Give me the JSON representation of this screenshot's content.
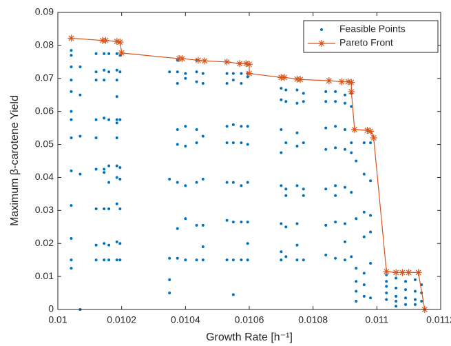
{
  "chart_data": {
    "type": "scatter",
    "xlabel": "Growth Rate [h⁻¹]",
    "ylabel": "Maximum β-carotene Yield",
    "xlim": [
      0.01,
      0.0112
    ],
    "ylim": [
      0,
      0.09
    ],
    "xticks": [
      0.01,
      0.0102,
      0.0104,
      0.0106,
      0.0108,
      0.011,
      0.0112
    ],
    "yticks": [
      0,
      0.01,
      0.02,
      0.03,
      0.04,
      0.05,
      0.06,
      0.07,
      0.08,
      0.09
    ],
    "legend": "upper right",
    "series": [
      {
        "name": "Feasible Points",
        "color": "#0072bd",
        "mode": "markers",
        "x": [
          0.010042,
          0.010042,
          0.010042,
          0.010042,
          0.010042,
          0.010042,
          0.010042,
          0.010042,
          0.010042,
          0.010042,
          0.010042,
          0.010042,
          0.010042,
          0.01007,
          0.01007,
          0.01007,
          0.01007,
          0.01007,
          0.01012,
          0.01012,
          0.01012,
          0.01012,
          0.01012,
          0.01012,
          0.01012,
          0.01012,
          0.01012,
          0.010145,
          0.010145,
          0.010145,
          0.010145,
          0.010145,
          0.010145,
          0.010145,
          0.010145,
          0.010145,
          0.01016,
          0.01016,
          0.01016,
          0.01016,
          0.01016,
          0.01016,
          0.01016,
          0.01016,
          0.010185,
          0.010185,
          0.010185,
          0.010185,
          0.010185,
          0.010185,
          0.010185,
          0.010185,
          0.010185,
          0.010185,
          0.010185,
          0.010185,
          0.010195,
          0.010195,
          0.010195,
          0.010195,
          0.010195,
          0.010195,
          0.010195,
          0.010195,
          0.01035,
          0.01035,
          0.01035,
          0.01035,
          0.01035,
          0.010375,
          0.010375,
          0.010375,
          0.010375,
          0.010375,
          0.010375,
          0.010375,
          0.010375,
          0.0104,
          0.0104,
          0.0104,
          0.0104,
          0.0104,
          0.0104,
          0.0104,
          0.010435,
          0.010435,
          0.010435,
          0.010435,
          0.010435,
          0.010435,
          0.010435,
          0.010435,
          0.010455,
          0.010455,
          0.010455,
          0.010455,
          0.010455,
          0.010455,
          0.010455,
          0.01053,
          0.01053,
          0.01053,
          0.01053,
          0.01053,
          0.01053,
          0.01053,
          0.01053,
          0.01055,
          0.01055,
          0.01055,
          0.01055,
          0.01055,
          0.01055,
          0.01055,
          0.01055,
          0.010575,
          0.010575,
          0.010575,
          0.010575,
          0.010575,
          0.010575,
          0.010575,
          0.010595,
          0.010595,
          0.010595,
          0.010595,
          0.010595,
          0.010595,
          0.010595,
          0.010595,
          0.0107,
          0.0107,
          0.0107,
          0.0107,
          0.0107,
          0.0107,
          0.0107,
          0.0107,
          0.010715,
          0.010715,
          0.010715,
          0.010715,
          0.010715,
          0.010715,
          0.010715,
          0.01075,
          0.01075,
          0.01075,
          0.01075,
          0.01075,
          0.01075,
          0.01075,
          0.01075,
          0.01077,
          0.01077,
          0.01077,
          0.01077,
          0.01077,
          0.01077,
          0.01084,
          0.01084,
          0.01084,
          0.01084,
          0.01084,
          0.01084,
          0.01084,
          0.01087,
          0.01087,
          0.01087,
          0.01087,
          0.01087,
          0.01087,
          0.01087,
          0.01087,
          0.0109,
          0.0109,
          0.0109,
          0.0109,
          0.0109,
          0.0109,
          0.0109,
          0.0109,
          0.01092,
          0.01092,
          0.01092,
          0.01092,
          0.01092,
          0.01092,
          0.010935,
          0.010935,
          0.010935,
          0.010935,
          0.010935,
          0.010935,
          0.01096,
          0.01096,
          0.01096,
          0.01096,
          0.01096,
          0.01096,
          0.01096,
          0.01098,
          0.01098,
          0.01098,
          0.01098,
          0.01098,
          0.01098,
          0.01103,
          0.01103,
          0.01103,
          0.01103,
          0.01103,
          0.01106,
          0.01106,
          0.01106,
          0.01106,
          0.01106,
          0.01109,
          0.01109,
          0.01109,
          0.01109,
          0.01112,
          0.01112,
          0.01112,
          0.01112,
          0.01114,
          0.01114,
          0.01114
        ],
        "y": [
          0.0785,
          0.077,
          0.0735,
          0.0695,
          0.066,
          0.06,
          0.0575,
          0.052,
          0.042,
          0.0315,
          0.0215,
          0.015,
          0.0125,
          0.0735,
          0.065,
          0.0525,
          0.041,
          0,
          0.0775,
          0.072,
          0.0695,
          0.0575,
          0.052,
          0.0425,
          0.0305,
          0.0195,
          0.015,
          0.0775,
          0.0725,
          0.0695,
          0.058,
          0.0425,
          0.0415,
          0.0305,
          0.02,
          0.015,
          0.0775,
          0.072,
          0.0575,
          0.0435,
          0.0385,
          0.0305,
          0.0195,
          0.015,
          0.0775,
          0.0725,
          0.0695,
          0.0645,
          0.0575,
          0.0565,
          0.052,
          0.0435,
          0.04,
          0.032,
          0.0205,
          0.015,
          0.077,
          0.072,
          0.0575,
          0.043,
          0.0395,
          0.0305,
          0.02,
          0.015,
          0.072,
          0.0395,
          0.0155,
          0.009,
          0.005,
          0.0755,
          0.072,
          0.0685,
          0.0545,
          0.05,
          0.0385,
          0.0245,
          0.0155,
          0.0715,
          0.07,
          0.0555,
          0.0495,
          0.0375,
          0.0275,
          0.015,
          0.0755,
          0.072,
          0.069,
          0.0545,
          0.0505,
          0.0385,
          0.0255,
          0.015,
          0.0715,
          0.0685,
          0.0525,
          0.0395,
          0.0255,
          0.019,
          0.015,
          0.075,
          0.0715,
          0.0685,
          0.0555,
          0.0505,
          0.0385,
          0.027,
          0.015,
          0.0715,
          0.0695,
          0.056,
          0.0505,
          0.0385,
          0.0265,
          0.015,
          0.0045,
          0.0715,
          0.0685,
          0.0555,
          0.0505,
          0.0375,
          0.0265,
          0.015,
          0.0715,
          0.0705,
          0.0555,
          0.05,
          0.0385,
          0.0265,
          0.02,
          0.015,
          0.067,
          0.0635,
          0.0545,
          0.0475,
          0.0375,
          0.026,
          0.0175,
          0.015,
          0.0665,
          0.063,
          0.0505,
          0.0365,
          0.0345,
          0.025,
          0.016,
          0.0665,
          0.0625,
          0.0535,
          0.0495,
          0.0375,
          0.026,
          0.0195,
          0.015,
          0.0655,
          0.063,
          0.0505,
          0.0365,
          0.0345,
          0.015,
          0.066,
          0.063,
          0.055,
          0.0485,
          0.0365,
          0.0255,
          0.0165,
          0.066,
          0.063,
          0.0555,
          0.049,
          0.0375,
          0.0345,
          0.0265,
          0.0155,
          0.065,
          0.0625,
          0.0545,
          0.0485,
          0.037,
          0.026,
          0.0205,
          0.015,
          0.0655,
          0.0615,
          0.0505,
          0.0475,
          0.0355,
          0.016,
          0.045,
          0.0275,
          0.0125,
          0.0085,
          0.0055,
          0.0025,
          0.0505,
          0.041,
          0.0295,
          0.022,
          0.011,
          0.0075,
          0.004,
          0.0505,
          0.039,
          0.0285,
          0.0235,
          0.014,
          0.0035,
          0.0105,
          0.0085,
          0.007,
          0.005,
          0.003,
          0.0095,
          0.0065,
          0.004,
          0.0025,
          0.001,
          0.0085,
          0.006,
          0.0035,
          0.0015,
          0.009,
          0.0055,
          0.003,
          0.0015,
          0.0075,
          0.005,
          0.0025
        ]
      },
      {
        "name": "Pareto Front",
        "color": "#d95319",
        "mode": "lines+markers",
        "x": [
          0.010042,
          0.01014,
          0.01015,
          0.010185,
          0.010195,
          0.0102,
          0.01038,
          0.01039,
          0.01044,
          0.01046,
          0.01053,
          0.01057,
          0.01059,
          0.0106,
          0.0106,
          0.0107,
          0.01071,
          0.01075,
          0.01076,
          0.01085,
          0.01089,
          0.01091,
          0.01092,
          0.01092,
          0.01093,
          0.01097,
          0.01098,
          0.01099,
          0.01103,
          0.01106,
          0.01108,
          0.0111,
          0.01113,
          0.01115
        ],
        "y": [
          0.0822,
          0.0815,
          0.0815,
          0.0812,
          0.081,
          0.0777,
          0.076,
          0.076,
          0.0755,
          0.0753,
          0.075,
          0.0745,
          0.0745,
          0.0743,
          0.0715,
          0.0703,
          0.0703,
          0.0698,
          0.0697,
          0.0693,
          0.069,
          0.069,
          0.0688,
          0.066,
          0.0545,
          0.0543,
          0.054,
          0.052,
          0.0115,
          0.0112,
          0.0112,
          0.0112,
          0.0112,
          0
        ]
      }
    ]
  }
}
